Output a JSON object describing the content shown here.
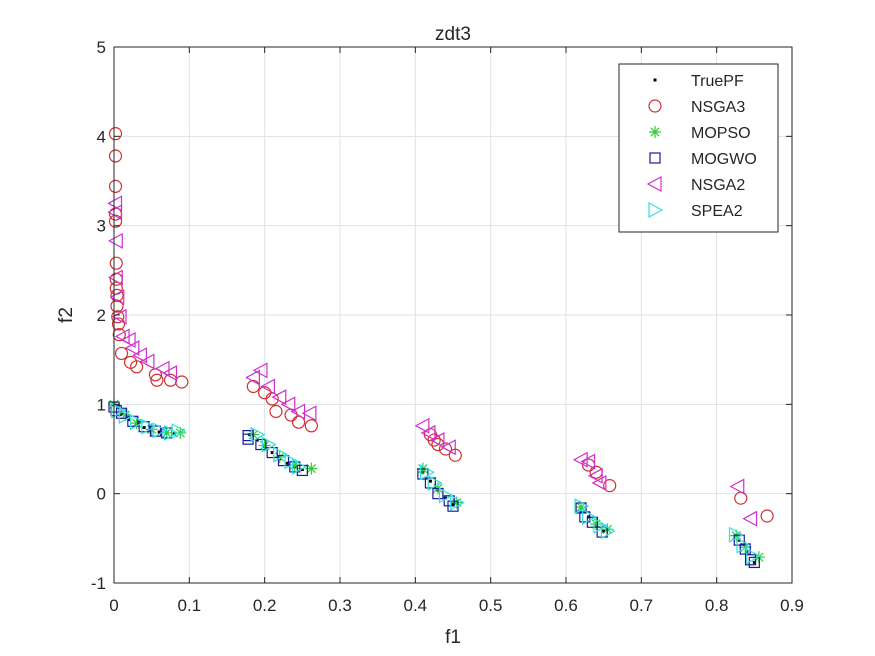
{
  "chart_data": {
    "type": "scatter",
    "title": "zdt3",
    "xlabel": "f1",
    "ylabel": "f2",
    "xlim": [
      0,
      0.9
    ],
    "ylim": [
      -1,
      5
    ],
    "xticks": [
      "0",
      "0.1",
      "0.2",
      "0.3",
      "0.4",
      "0.5",
      "0.6",
      "0.7",
      "0.8",
      "0.9"
    ],
    "yticks": [
      "-1",
      "0",
      "1",
      "2",
      "3",
      "4",
      "5"
    ],
    "grid": true,
    "legend_position": "top-right",
    "series": [
      {
        "name": "TruePF",
        "marker": "dot",
        "color": "#000000",
        "points": [
          [
            0.0,
            1.0
          ],
          [
            0.01,
            0.9
          ],
          [
            0.02,
            0.83
          ],
          [
            0.03,
            0.78
          ],
          [
            0.04,
            0.74
          ],
          [
            0.05,
            0.71
          ],
          [
            0.06,
            0.69
          ],
          [
            0.07,
            0.68
          ],
          [
            0.08,
            0.67
          ],
          [
            0.18,
            0.66
          ],
          [
            0.19,
            0.6
          ],
          [
            0.2,
            0.53
          ],
          [
            0.21,
            0.46
          ],
          [
            0.22,
            0.39
          ],
          [
            0.23,
            0.34
          ],
          [
            0.24,
            0.3
          ],
          [
            0.25,
            0.27
          ],
          [
            0.41,
            0.24
          ],
          [
            0.42,
            0.14
          ],
          [
            0.43,
            0.04
          ],
          [
            0.44,
            -0.05
          ],
          [
            0.45,
            -0.12
          ],
          [
            0.62,
            -0.16
          ],
          [
            0.63,
            -0.26
          ],
          [
            0.64,
            -0.35
          ],
          [
            0.65,
            -0.42
          ],
          [
            0.83,
            -0.52
          ],
          [
            0.84,
            -0.65
          ],
          [
            0.85,
            -0.77
          ]
        ]
      },
      {
        "name": "NSGA3",
        "marker": "circle",
        "color": "#d03030",
        "points": [
          [
            0.002,
            4.03
          ],
          [
            0.002,
            3.78
          ],
          [
            0.002,
            3.44
          ],
          [
            0.002,
            3.13
          ],
          [
            0.002,
            3.05
          ],
          [
            0.003,
            2.58
          ],
          [
            0.003,
            2.4
          ],
          [
            0.003,
            2.3
          ],
          [
            0.004,
            2.22
          ],
          [
            0.004,
            2.1
          ],
          [
            0.005,
            1.98
          ],
          [
            0.006,
            1.9
          ],
          [
            0.007,
            1.78
          ],
          [
            0.01,
            1.57
          ],
          [
            0.022,
            1.47
          ],
          [
            0.03,
            1.42
          ],
          [
            0.055,
            1.33
          ],
          [
            0.057,
            1.27
          ],
          [
            0.075,
            1.27
          ],
          [
            0.09,
            1.25
          ],
          [
            0.185,
            1.2
          ],
          [
            0.2,
            1.13
          ],
          [
            0.21,
            1.06
          ],
          [
            0.215,
            0.92
          ],
          [
            0.235,
            0.88
          ],
          [
            0.245,
            0.8
          ],
          [
            0.262,
            0.76
          ],
          [
            0.42,
            0.66
          ],
          [
            0.425,
            0.6
          ],
          [
            0.43,
            0.55
          ],
          [
            0.44,
            0.5
          ],
          [
            0.453,
            0.43
          ],
          [
            0.63,
            0.32
          ],
          [
            0.64,
            0.24
          ],
          [
            0.658,
            0.09
          ],
          [
            0.832,
            -0.05
          ],
          [
            0.867,
            -0.25
          ]
        ]
      },
      {
        "name": "MOPSO",
        "marker": "asterisk",
        "color": "#33cc33",
        "points": [
          [
            0.0,
            1.0
          ],
          [
            0.015,
            0.88
          ],
          [
            0.03,
            0.79
          ],
          [
            0.05,
            0.72
          ],
          [
            0.07,
            0.68
          ],
          [
            0.088,
            0.68
          ],
          [
            0.185,
            0.66
          ],
          [
            0.2,
            0.54
          ],
          [
            0.22,
            0.41
          ],
          [
            0.24,
            0.32
          ],
          [
            0.262,
            0.28
          ],
          [
            0.41,
            0.28
          ],
          [
            0.43,
            0.06
          ],
          [
            0.455,
            -0.1
          ],
          [
            0.62,
            -0.15
          ],
          [
            0.64,
            -0.34
          ],
          [
            0.655,
            -0.4
          ],
          [
            0.826,
            -0.47
          ],
          [
            0.838,
            -0.6
          ],
          [
            0.856,
            -0.71
          ]
        ]
      },
      {
        "name": "MOGWO",
        "marker": "square",
        "color": "#1a1a99",
        "points": [
          [
            0.0,
            0.97
          ],
          [
            0.003,
            0.93
          ],
          [
            0.01,
            0.9
          ],
          [
            0.025,
            0.81
          ],
          [
            0.04,
            0.75
          ],
          [
            0.055,
            0.7
          ],
          [
            0.07,
            0.68
          ],
          [
            0.178,
            0.65
          ],
          [
            0.178,
            0.61
          ],
          [
            0.195,
            0.55
          ],
          [
            0.21,
            0.46
          ],
          [
            0.225,
            0.37
          ],
          [
            0.24,
            0.3
          ],
          [
            0.25,
            0.26
          ],
          [
            0.41,
            0.22
          ],
          [
            0.42,
            0.12
          ],
          [
            0.43,
            0.0
          ],
          [
            0.445,
            -0.08
          ],
          [
            0.45,
            -0.14
          ],
          [
            0.62,
            -0.16
          ],
          [
            0.625,
            -0.26
          ],
          [
            0.635,
            -0.32
          ],
          [
            0.648,
            -0.43
          ],
          [
            0.83,
            -0.52
          ],
          [
            0.838,
            -0.62
          ],
          [
            0.845,
            -0.74
          ],
          [
            0.85,
            -0.77
          ]
        ]
      },
      {
        "name": "NSGA2",
        "marker": "triangle-left",
        "color": "#d02ed0",
        "points": [
          [
            0.002,
            3.25
          ],
          [
            0.002,
            3.15
          ],
          [
            0.003,
            2.83
          ],
          [
            0.003,
            2.42
          ],
          [
            0.005,
            2.2
          ],
          [
            0.008,
            1.98
          ],
          [
            0.012,
            1.76
          ],
          [
            0.02,
            1.72
          ],
          [
            0.025,
            1.63
          ],
          [
            0.035,
            1.55
          ],
          [
            0.045,
            1.48
          ],
          [
            0.065,
            1.4
          ],
          [
            0.075,
            1.35
          ],
          [
            0.185,
            1.3
          ],
          [
            0.195,
            1.38
          ],
          [
            0.205,
            1.2
          ],
          [
            0.22,
            1.08
          ],
          [
            0.232,
            1.0
          ],
          [
            0.245,
            0.92
          ],
          [
            0.26,
            0.9
          ],
          [
            0.41,
            0.76
          ],
          [
            0.418,
            0.68
          ],
          [
            0.43,
            0.6
          ],
          [
            0.445,
            0.52
          ],
          [
            0.62,
            0.38
          ],
          [
            0.63,
            0.36
          ],
          [
            0.64,
            0.2
          ],
          [
            0.645,
            0.12
          ],
          [
            0.828,
            0.08
          ],
          [
            0.845,
            -0.28
          ]
        ]
      },
      {
        "name": "SPEA2",
        "marker": "triangle-right",
        "color": "#33e0e0",
        "points": [
          [
            0.005,
            0.93
          ],
          [
            0.015,
            0.87
          ],
          [
            0.03,
            0.8
          ],
          [
            0.045,
            0.75
          ],
          [
            0.06,
            0.71
          ],
          [
            0.075,
            0.68
          ],
          [
            0.085,
            0.7
          ],
          [
            0.19,
            0.66
          ],
          [
            0.205,
            0.55
          ],
          [
            0.22,
            0.44
          ],
          [
            0.235,
            0.36
          ],
          [
            0.245,
            0.3
          ],
          [
            0.415,
            0.24
          ],
          [
            0.425,
            0.12
          ],
          [
            0.44,
            -0.02
          ],
          [
            0.455,
            -0.1
          ],
          [
            0.62,
            -0.14
          ],
          [
            0.63,
            -0.26
          ],
          [
            0.645,
            -0.36
          ],
          [
            0.655,
            -0.42
          ],
          [
            0.825,
            -0.46
          ],
          [
            0.835,
            -0.58
          ],
          [
            0.848,
            -0.7
          ]
        ]
      }
    ]
  }
}
